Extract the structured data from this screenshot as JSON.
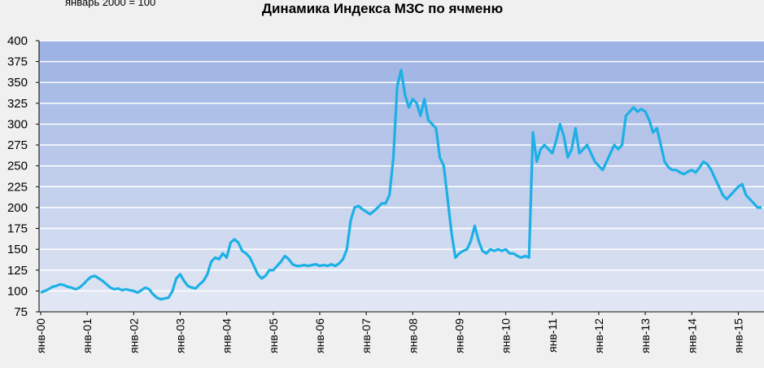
{
  "chart_data": {
    "type": "line",
    "title": "Динамика Индекса МЗС по ячменю",
    "subtitle": "январь 2000 = 100",
    "color": "#1cb0e6",
    "grid": true,
    "ylim": [
      75,
      400
    ],
    "yticks": [
      75,
      100,
      125,
      150,
      175,
      200,
      225,
      250,
      275,
      300,
      325,
      350,
      375,
      400
    ],
    "xticks": [
      {
        "value": "2000-01",
        "label": "янв-00"
      },
      {
        "value": "2001-01",
        "label": "янв-01"
      },
      {
        "value": "2002-01",
        "label": "янв-02"
      },
      {
        "value": "2003-01",
        "label": "янв-03"
      },
      {
        "value": "2004-01",
        "label": "янв-04"
      },
      {
        "value": "2005-01",
        "label": "янв-05"
      },
      {
        "value": "2006-01",
        "label": "янв-06"
      },
      {
        "value": "2007-01",
        "label": "янв-07"
      },
      {
        "value": "2008-01",
        "label": "янв-08"
      },
      {
        "value": "2009-01",
        "label": "янв-09"
      },
      {
        "value": "2010-01",
        "label": "янв-10"
      },
      {
        "value": "2011-01",
        "label": "янв-11"
      },
      {
        "value": "2012-01",
        "label": "янв-12"
      },
      {
        "value": "2013-01",
        "label": "янв-13"
      },
      {
        "value": "2014-01",
        "label": "янв-14"
      },
      {
        "value": "2015-01",
        "label": "янв-15"
      }
    ],
    "x": [
      "2000-01",
      "2000-02",
      "2000-03",
      "2000-04",
      "2000-05",
      "2000-06",
      "2000-07",
      "2000-08",
      "2000-09",
      "2000-10",
      "2000-11",
      "2000-12",
      "2001-01",
      "2001-02",
      "2001-03",
      "2001-04",
      "2001-05",
      "2001-06",
      "2001-07",
      "2001-08",
      "2001-09",
      "2001-10",
      "2001-11",
      "2001-12",
      "2002-01",
      "2002-02",
      "2002-03",
      "2002-04",
      "2002-05",
      "2002-06",
      "2002-07",
      "2002-08",
      "2002-09",
      "2002-10",
      "2002-11",
      "2002-12",
      "2003-01",
      "2003-02",
      "2003-03",
      "2003-04",
      "2003-05",
      "2003-06",
      "2003-07",
      "2003-08",
      "2003-09",
      "2003-10",
      "2003-11",
      "2003-12",
      "2004-01",
      "2004-02",
      "2004-03",
      "2004-04",
      "2004-05",
      "2004-06",
      "2004-07",
      "2004-08",
      "2004-09",
      "2004-10",
      "2004-11",
      "2004-12",
      "2005-01",
      "2005-02",
      "2005-03",
      "2005-04",
      "2005-05",
      "2005-06",
      "2005-07",
      "2005-08",
      "2005-09",
      "2005-10",
      "2005-11",
      "2005-12",
      "2006-01",
      "2006-02",
      "2006-03",
      "2006-04",
      "2006-05",
      "2006-06",
      "2006-07",
      "2006-08",
      "2006-09",
      "2006-10",
      "2006-11",
      "2006-12",
      "2007-01",
      "2007-02",
      "2007-03",
      "2007-04",
      "2007-05",
      "2007-06",
      "2007-07",
      "2007-08",
      "2007-09",
      "2007-10",
      "2007-11",
      "2007-12",
      "2008-01",
      "2008-02",
      "2008-03",
      "2008-04",
      "2008-05",
      "2008-06",
      "2008-07",
      "2008-08",
      "2008-09",
      "2008-10",
      "2008-11",
      "2008-12",
      "2009-01",
      "2009-02",
      "2009-03",
      "2009-04",
      "2009-05",
      "2009-06",
      "2009-07",
      "2009-08",
      "2009-09",
      "2009-10",
      "2009-11",
      "2009-12",
      "2010-01",
      "2010-02",
      "2010-03",
      "2010-04",
      "2010-05",
      "2010-06",
      "2010-07",
      "2010-08",
      "2010-09",
      "2010-10",
      "2010-11",
      "2010-12",
      "2011-01",
      "2011-02",
      "2011-03",
      "2011-04",
      "2011-05",
      "2011-06",
      "2011-07",
      "2011-08",
      "2011-09",
      "2011-10",
      "2011-11",
      "2011-12",
      "2012-01",
      "2012-02",
      "2012-03",
      "2012-04",
      "2012-05",
      "2012-06",
      "2012-07",
      "2012-08",
      "2012-09",
      "2012-10",
      "2012-11",
      "2012-12",
      "2013-01",
      "2013-02",
      "2013-03",
      "2013-04",
      "2013-05",
      "2013-06",
      "2013-07",
      "2013-08",
      "2013-09",
      "2013-10",
      "2013-11",
      "2013-12",
      "2014-01",
      "2014-02",
      "2014-03",
      "2014-04",
      "2014-05",
      "2014-06",
      "2014-07",
      "2014-08",
      "2014-09",
      "2014-10",
      "2014-11",
      "2014-12",
      "2015-01",
      "2015-02",
      "2015-03",
      "2015-04",
      "2015-05",
      "2015-06",
      "2015-07"
    ],
    "values": [
      98,
      100,
      102,
      105,
      106,
      108,
      107,
      105,
      104,
      102,
      104,
      108,
      113,
      117,
      118,
      115,
      112,
      108,
      104,
      102,
      103,
      101,
      102,
      101,
      100,
      98,
      101,
      104,
      102,
      96,
      92,
      90,
      91,
      92,
      100,
      115,
      120,
      112,
      106,
      104,
      103,
      108,
      112,
      120,
      135,
      140,
      138,
      145,
      140,
      158,
      162,
      158,
      148,
      145,
      140,
      130,
      120,
      115,
      118,
      125,
      125,
      130,
      135,
      142,
      138,
      132,
      130,
      130,
      131,
      130,
      131,
      132,
      130,
      131,
      130,
      132,
      130,
      133,
      138,
      150,
      185,
      200,
      202,
      198,
      195,
      192,
      196,
      200,
      205,
      205,
      215,
      260,
      345,
      365,
      335,
      320,
      330,
      325,
      310,
      330,
      305,
      300,
      295,
      260,
      250,
      210,
      170,
      140,
      145,
      148,
      150,
      160,
      178,
      160,
      148,
      145,
      150,
      148,
      150,
      148,
      150,
      145,
      145,
      142,
      140,
      142,
      140,
      290,
      255,
      270,
      275,
      270,
      265,
      280,
      300,
      285,
      260,
      270,
      295,
      265,
      270,
      275,
      265,
      255,
      250,
      245,
      255,
      265,
      275,
      270,
      275,
      310,
      315,
      320,
      315,
      318,
      315,
      305,
      290,
      295,
      275,
      255,
      248,
      245,
      245,
      242,
      240,
      243,
      245,
      242,
      248,
      255,
      252,
      245,
      235,
      225,
      215,
      210,
      215,
      220,
      225,
      228,
      215,
      210,
      205,
      200,
      200
    ]
  }
}
